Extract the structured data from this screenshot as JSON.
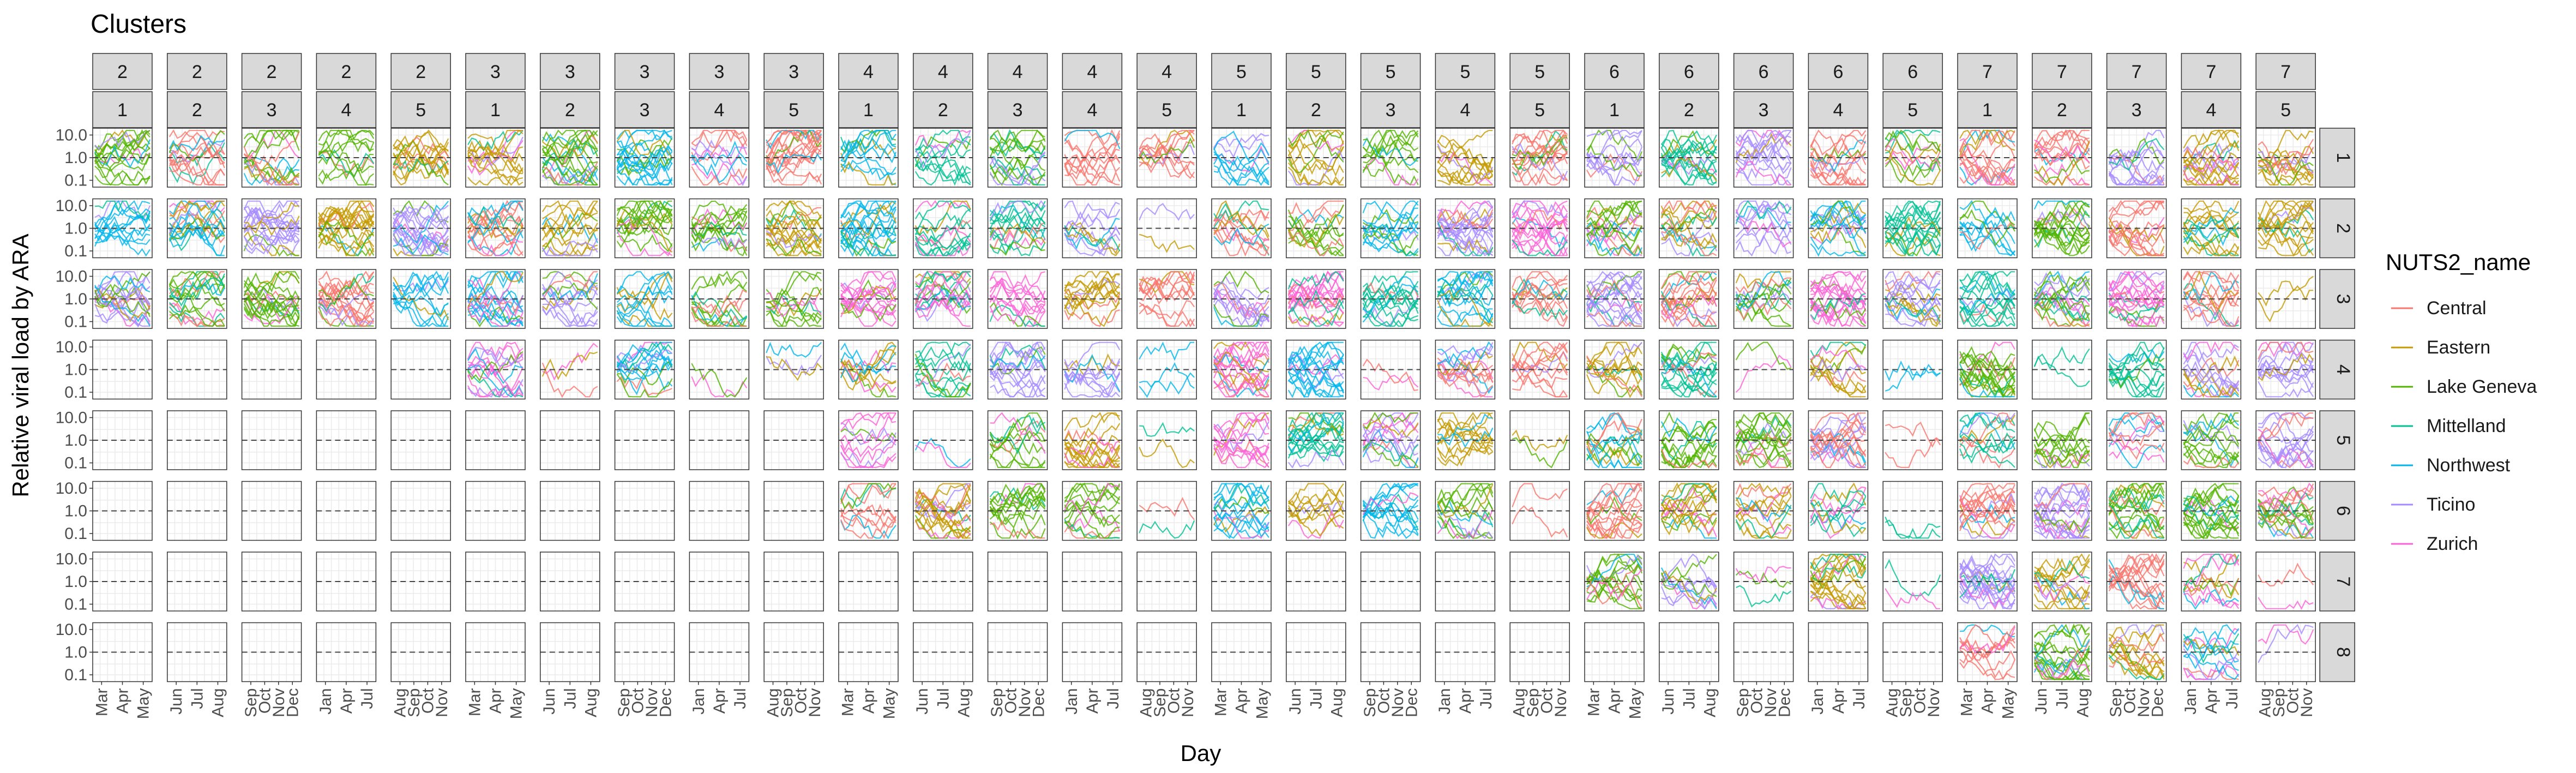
{
  "chart_data": {
    "type": "line",
    "title": "Clusters",
    "xlabel": "Day",
    "ylabel": "Relative viral load by ARA",
    "y_scale": "log10",
    "ylim": [
      0.05,
      20
    ],
    "y_ticks": [
      "10.0",
      "1.0",
      "0.1"
    ],
    "reference_line": {
      "y": 1.0,
      "style": "dashed",
      "color": "#444444"
    },
    "grid": true,
    "legend_position": "right",
    "legend": {
      "title": "NUTS2_name",
      "entries": [
        {
          "name": "Central",
          "color": "#F8766D"
        },
        {
          "name": "Eastern",
          "color": "#C49A00"
        },
        {
          "name": "Lake Geneva",
          "color": "#53B400"
        },
        {
          "name": "Mittelland",
          "color": "#00C094"
        },
        {
          "name": "Northwest",
          "color": "#00B6EB"
        },
        {
          "name": "Ticino",
          "color": "#A58AFF"
        },
        {
          "name": "Zurich",
          "color": "#FB61D7"
        }
      ]
    },
    "facet_columns": [
      {
        "top": "2",
        "sub": "1",
        "ticks": [
          "Mar",
          "Apr",
          "May"
        ]
      },
      {
        "top": "2",
        "sub": "2",
        "ticks": [
          "Jun",
          "Jul",
          "Aug"
        ]
      },
      {
        "top": "2",
        "sub": "3",
        "ticks": [
          "Sep",
          "Oct",
          "Nov",
          "Dec"
        ]
      },
      {
        "top": "2",
        "sub": "4",
        "ticks": [
          "Jan",
          "Apr",
          "Jul"
        ]
      },
      {
        "top": "2",
        "sub": "5",
        "ticks": [
          "Aug",
          "Sep",
          "Oct",
          "Nov"
        ]
      },
      {
        "top": "3",
        "sub": "1",
        "ticks": [
          "Mar",
          "Apr",
          "May"
        ]
      },
      {
        "top": "3",
        "sub": "2",
        "ticks": [
          "Jun",
          "Jul",
          "Aug"
        ]
      },
      {
        "top": "3",
        "sub": "3",
        "ticks": [
          "Sep",
          "Oct",
          "Nov",
          "Dec"
        ]
      },
      {
        "top": "3",
        "sub": "4",
        "ticks": [
          "Jan",
          "Apr",
          "Jul"
        ]
      },
      {
        "top": "3",
        "sub": "5",
        "ticks": [
          "Aug",
          "Sep",
          "Oct",
          "Nov"
        ]
      },
      {
        "top": "4",
        "sub": "1",
        "ticks": [
          "Mar",
          "Apr",
          "May"
        ]
      },
      {
        "top": "4",
        "sub": "2",
        "ticks": [
          "Jun",
          "Jul",
          "Aug"
        ]
      },
      {
        "top": "4",
        "sub": "3",
        "ticks": [
          "Sep",
          "Oct",
          "Nov",
          "Dec"
        ]
      },
      {
        "top": "4",
        "sub": "4",
        "ticks": [
          "Jan",
          "Apr",
          "Jul"
        ]
      },
      {
        "top": "4",
        "sub": "5",
        "ticks": [
          "Aug",
          "Sep",
          "Oct",
          "Nov"
        ]
      },
      {
        "top": "5",
        "sub": "1",
        "ticks": [
          "Mar",
          "Apr",
          "May"
        ]
      },
      {
        "top": "5",
        "sub": "2",
        "ticks": [
          "Jun",
          "Jul",
          "Aug"
        ]
      },
      {
        "top": "5",
        "sub": "3",
        "ticks": [
          "Sep",
          "Oct",
          "Nov",
          "Dec"
        ]
      },
      {
        "top": "5",
        "sub": "4",
        "ticks": [
          "Jan",
          "Apr",
          "Jul"
        ]
      },
      {
        "top": "5",
        "sub": "5",
        "ticks": [
          "Aug",
          "Sep",
          "Oct",
          "Nov"
        ]
      },
      {
        "top": "6",
        "sub": "1",
        "ticks": [
          "Mar",
          "Apr",
          "May"
        ]
      },
      {
        "top": "6",
        "sub": "2",
        "ticks": [
          "Jun",
          "Jul",
          "Aug"
        ]
      },
      {
        "top": "6",
        "sub": "3",
        "ticks": [
          "Sep",
          "Oct",
          "Nov",
          "Dec"
        ]
      },
      {
        "top": "6",
        "sub": "4",
        "ticks": [
          "Jan",
          "Apr",
          "Jul"
        ]
      },
      {
        "top": "6",
        "sub": "5",
        "ticks": [
          "Aug",
          "Sep",
          "Oct",
          "Nov"
        ]
      },
      {
        "top": "7",
        "sub": "1",
        "ticks": [
          "Mar",
          "Apr",
          "May"
        ]
      },
      {
        "top": "7",
        "sub": "2",
        "ticks": [
          "Jun",
          "Jul",
          "Aug"
        ]
      },
      {
        "top": "7",
        "sub": "3",
        "ticks": [
          "Sep",
          "Oct",
          "Nov",
          "Dec"
        ]
      },
      {
        "top": "7",
        "sub": "4",
        "ticks": [
          "Jan",
          "Apr",
          "Jul"
        ]
      },
      {
        "top": "7",
        "sub": "5",
        "ticks": [
          "Aug",
          "Sep",
          "Oct",
          "Nov"
        ]
      }
    ],
    "facet_rows": [
      "1",
      "2",
      "3",
      "4",
      "5",
      "6",
      "7",
      "8"
    ],
    "panel_content": [
      "MMMMMMMMMMMMMMMMMMMMMMMMMMMMMM",
      "MMMMMMMMMMMMMMFMMMMMMMMMMMMMMM",
      "MMMMMMMMMMMMMMMMMMMMMMMMMMMMMF",
      "EEEEEMFMFFMMMMFMMFMMMMFMFMFMMM",
      "EEEEEEEEEEMFMMFMMMMFMMMMFMMMMM",
      "EEEEEEEEEEMMMMFMMMMFMMMMFMMMMM",
      "EEEEEEEEEEEEEEEEEEEEMMFMFMMMMF",
      "EEEEEEEEEEEEEEEEEEEEEEEEEMMMMF"
    ]
  }
}
